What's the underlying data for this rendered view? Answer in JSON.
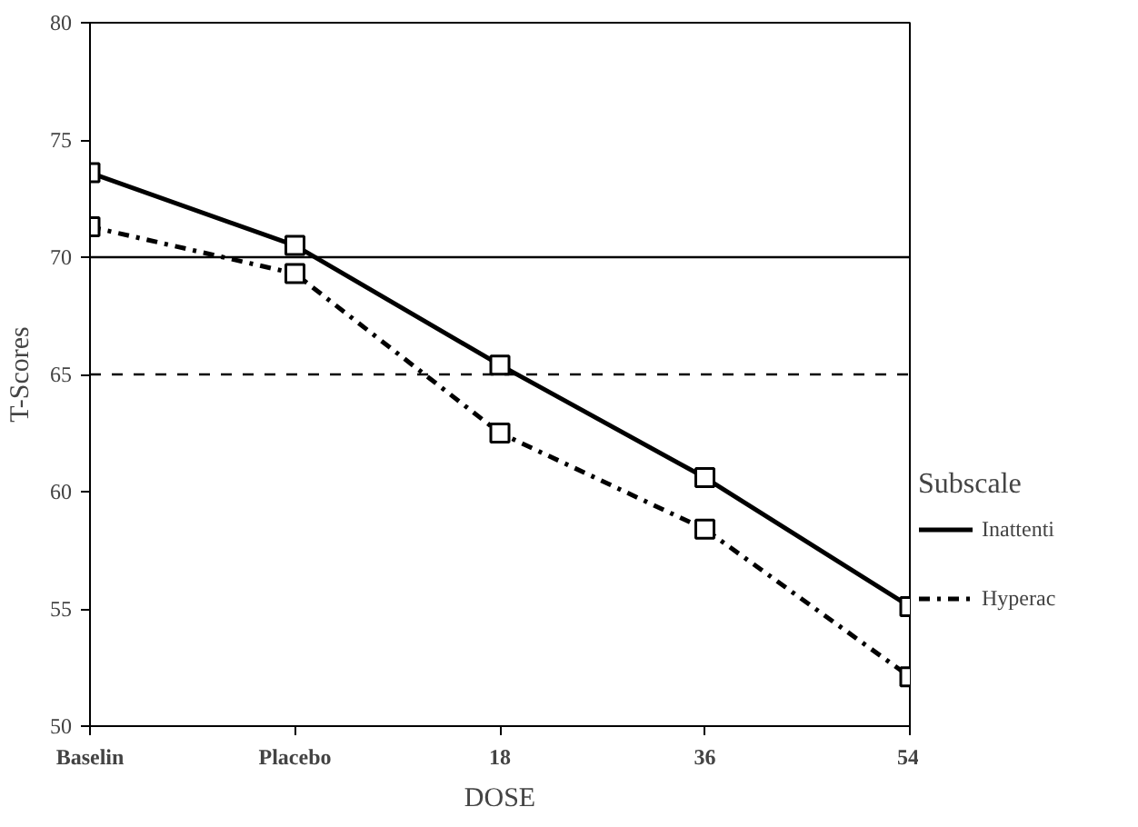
{
  "chart_data": {
    "type": "line",
    "xlabel": "DOSE",
    "ylabel": "T-Scores",
    "legend_title": "Subscale",
    "categories": [
      "Baselin",
      "Placebo",
      "18",
      "36",
      "54"
    ],
    "series": [
      {
        "name": "Inattenti",
        "color": "#000000",
        "line_style": "solid",
        "values": [
          73.6,
          70.5,
          65.4,
          60.6,
          55.1
        ]
      },
      {
        "name": "Hyperac",
        "color": "#000000",
        "line_style": "dashdot",
        "values": [
          71.3,
          69.3,
          62.5,
          58.4,
          52.1
        ]
      }
    ],
    "ylim": [
      50,
      80
    ],
    "yticks": [
      50,
      55,
      60,
      65,
      70,
      75,
      80
    ],
    "ref_lines": [
      {
        "axis": "y",
        "value": 70,
        "color": "#000000",
        "line_style": "solid"
      },
      {
        "axis": "y",
        "value": 65,
        "color": "#000000",
        "line_style": "dashed"
      }
    ],
    "marker": "square",
    "grid": false,
    "legend": "right"
  }
}
